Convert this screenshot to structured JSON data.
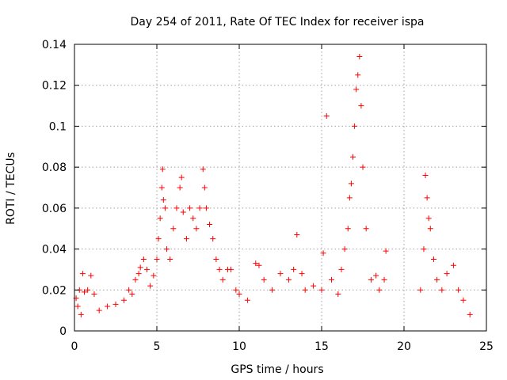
{
  "chart_data": {
    "type": "scatter",
    "title": "Day 254 of 2011, Rate Of TEC Index for receiver ispa",
    "xlabel": "GPS time / hours",
    "ylabel": "ROTI / TECUs",
    "xlim": [
      0,
      25
    ],
    "ylim": [
      0,
      0.14
    ],
    "xticks": [
      "0",
      "5",
      "10",
      "15",
      "20",
      "25"
    ],
    "yticks": [
      "0",
      "0.02",
      "0.04",
      "0.06",
      "0.08",
      "0.1",
      "0.12",
      "0.14"
    ],
    "grid": true,
    "marker": "plus",
    "color": "#ff0000",
    "series": [
      {
        "points": [
          [
            0.1,
            0.016
          ],
          [
            0.2,
            0.012
          ],
          [
            0.3,
            0.02
          ],
          [
            0.4,
            0.008
          ],
          [
            0.5,
            0.028
          ],
          [
            0.6,
            0.019
          ],
          [
            0.8,
            0.02
          ],
          [
            1.0,
            0.027
          ],
          [
            1.2,
            0.018
          ],
          [
            1.5,
            0.01
          ],
          [
            2.0,
            0.012
          ],
          [
            2.5,
            0.013
          ],
          [
            3.0,
            0.015
          ],
          [
            3.3,
            0.02
          ],
          [
            3.5,
            0.018
          ],
          [
            3.7,
            0.025
          ],
          [
            3.9,
            0.028
          ],
          [
            4.0,
            0.031
          ],
          [
            4.2,
            0.035
          ],
          [
            4.4,
            0.03
          ],
          [
            4.6,
            0.022
          ],
          [
            4.8,
            0.027
          ],
          [
            5.0,
            0.035
          ],
          [
            5.1,
            0.045
          ],
          [
            5.2,
            0.055
          ],
          [
            5.3,
            0.07
          ],
          [
            5.35,
            0.079
          ],
          [
            5.4,
            0.064
          ],
          [
            5.5,
            0.06
          ],
          [
            5.6,
            0.04
          ],
          [
            5.8,
            0.035
          ],
          [
            6.0,
            0.05
          ],
          [
            6.2,
            0.06
          ],
          [
            6.4,
            0.07
          ],
          [
            6.5,
            0.075
          ],
          [
            6.6,
            0.058
          ],
          [
            6.8,
            0.045
          ],
          [
            7.0,
            0.06
          ],
          [
            7.2,
            0.055
          ],
          [
            7.4,
            0.05
          ],
          [
            7.6,
            0.06
          ],
          [
            7.8,
            0.079
          ],
          [
            7.9,
            0.07
          ],
          [
            8.0,
            0.06
          ],
          [
            8.2,
            0.052
          ],
          [
            8.4,
            0.045
          ],
          [
            8.6,
            0.035
          ],
          [
            8.8,
            0.03
          ],
          [
            9.0,
            0.025
          ],
          [
            9.3,
            0.03
          ],
          [
            9.5,
            0.03
          ],
          [
            9.8,
            0.02
          ],
          [
            10.0,
            0.018
          ],
          [
            10.5,
            0.015
          ],
          [
            11.0,
            0.033
          ],
          [
            11.2,
            0.032
          ],
          [
            11.5,
            0.025
          ],
          [
            12.0,
            0.02
          ],
          [
            12.5,
            0.028
          ],
          [
            13.0,
            0.025
          ],
          [
            13.3,
            0.03
          ],
          [
            13.5,
            0.047
          ],
          [
            13.8,
            0.028
          ],
          [
            14.0,
            0.02
          ],
          [
            14.5,
            0.022
          ],
          [
            15.0,
            0.02
          ],
          [
            15.1,
            0.038
          ],
          [
            15.3,
            0.105
          ],
          [
            15.6,
            0.025
          ],
          [
            16.0,
            0.018
          ],
          [
            16.2,
            0.03
          ],
          [
            16.4,
            0.04
          ],
          [
            16.6,
            0.05
          ],
          [
            16.7,
            0.065
          ],
          [
            16.8,
            0.072
          ],
          [
            16.9,
            0.085
          ],
          [
            17.0,
            0.1
          ],
          [
            17.1,
            0.118
          ],
          [
            17.2,
            0.125
          ],
          [
            17.3,
            0.134
          ],
          [
            17.4,
            0.11
          ],
          [
            17.5,
            0.08
          ],
          [
            17.7,
            0.05
          ],
          [
            18.0,
            0.025
          ],
          [
            18.3,
            0.027
          ],
          [
            18.5,
            0.02
          ],
          [
            18.8,
            0.025
          ],
          [
            18.9,
            0.039
          ],
          [
            21.0,
            0.02
          ],
          [
            21.2,
            0.04
          ],
          [
            21.3,
            0.076
          ],
          [
            21.4,
            0.065
          ],
          [
            21.5,
            0.055
          ],
          [
            21.6,
            0.05
          ],
          [
            21.8,
            0.035
          ],
          [
            22.0,
            0.025
          ],
          [
            22.3,
            0.02
          ],
          [
            22.6,
            0.028
          ],
          [
            23.0,
            0.032
          ],
          [
            23.3,
            0.02
          ],
          [
            23.6,
            0.015
          ],
          [
            24.0,
            0.008
          ]
        ]
      }
    ]
  }
}
